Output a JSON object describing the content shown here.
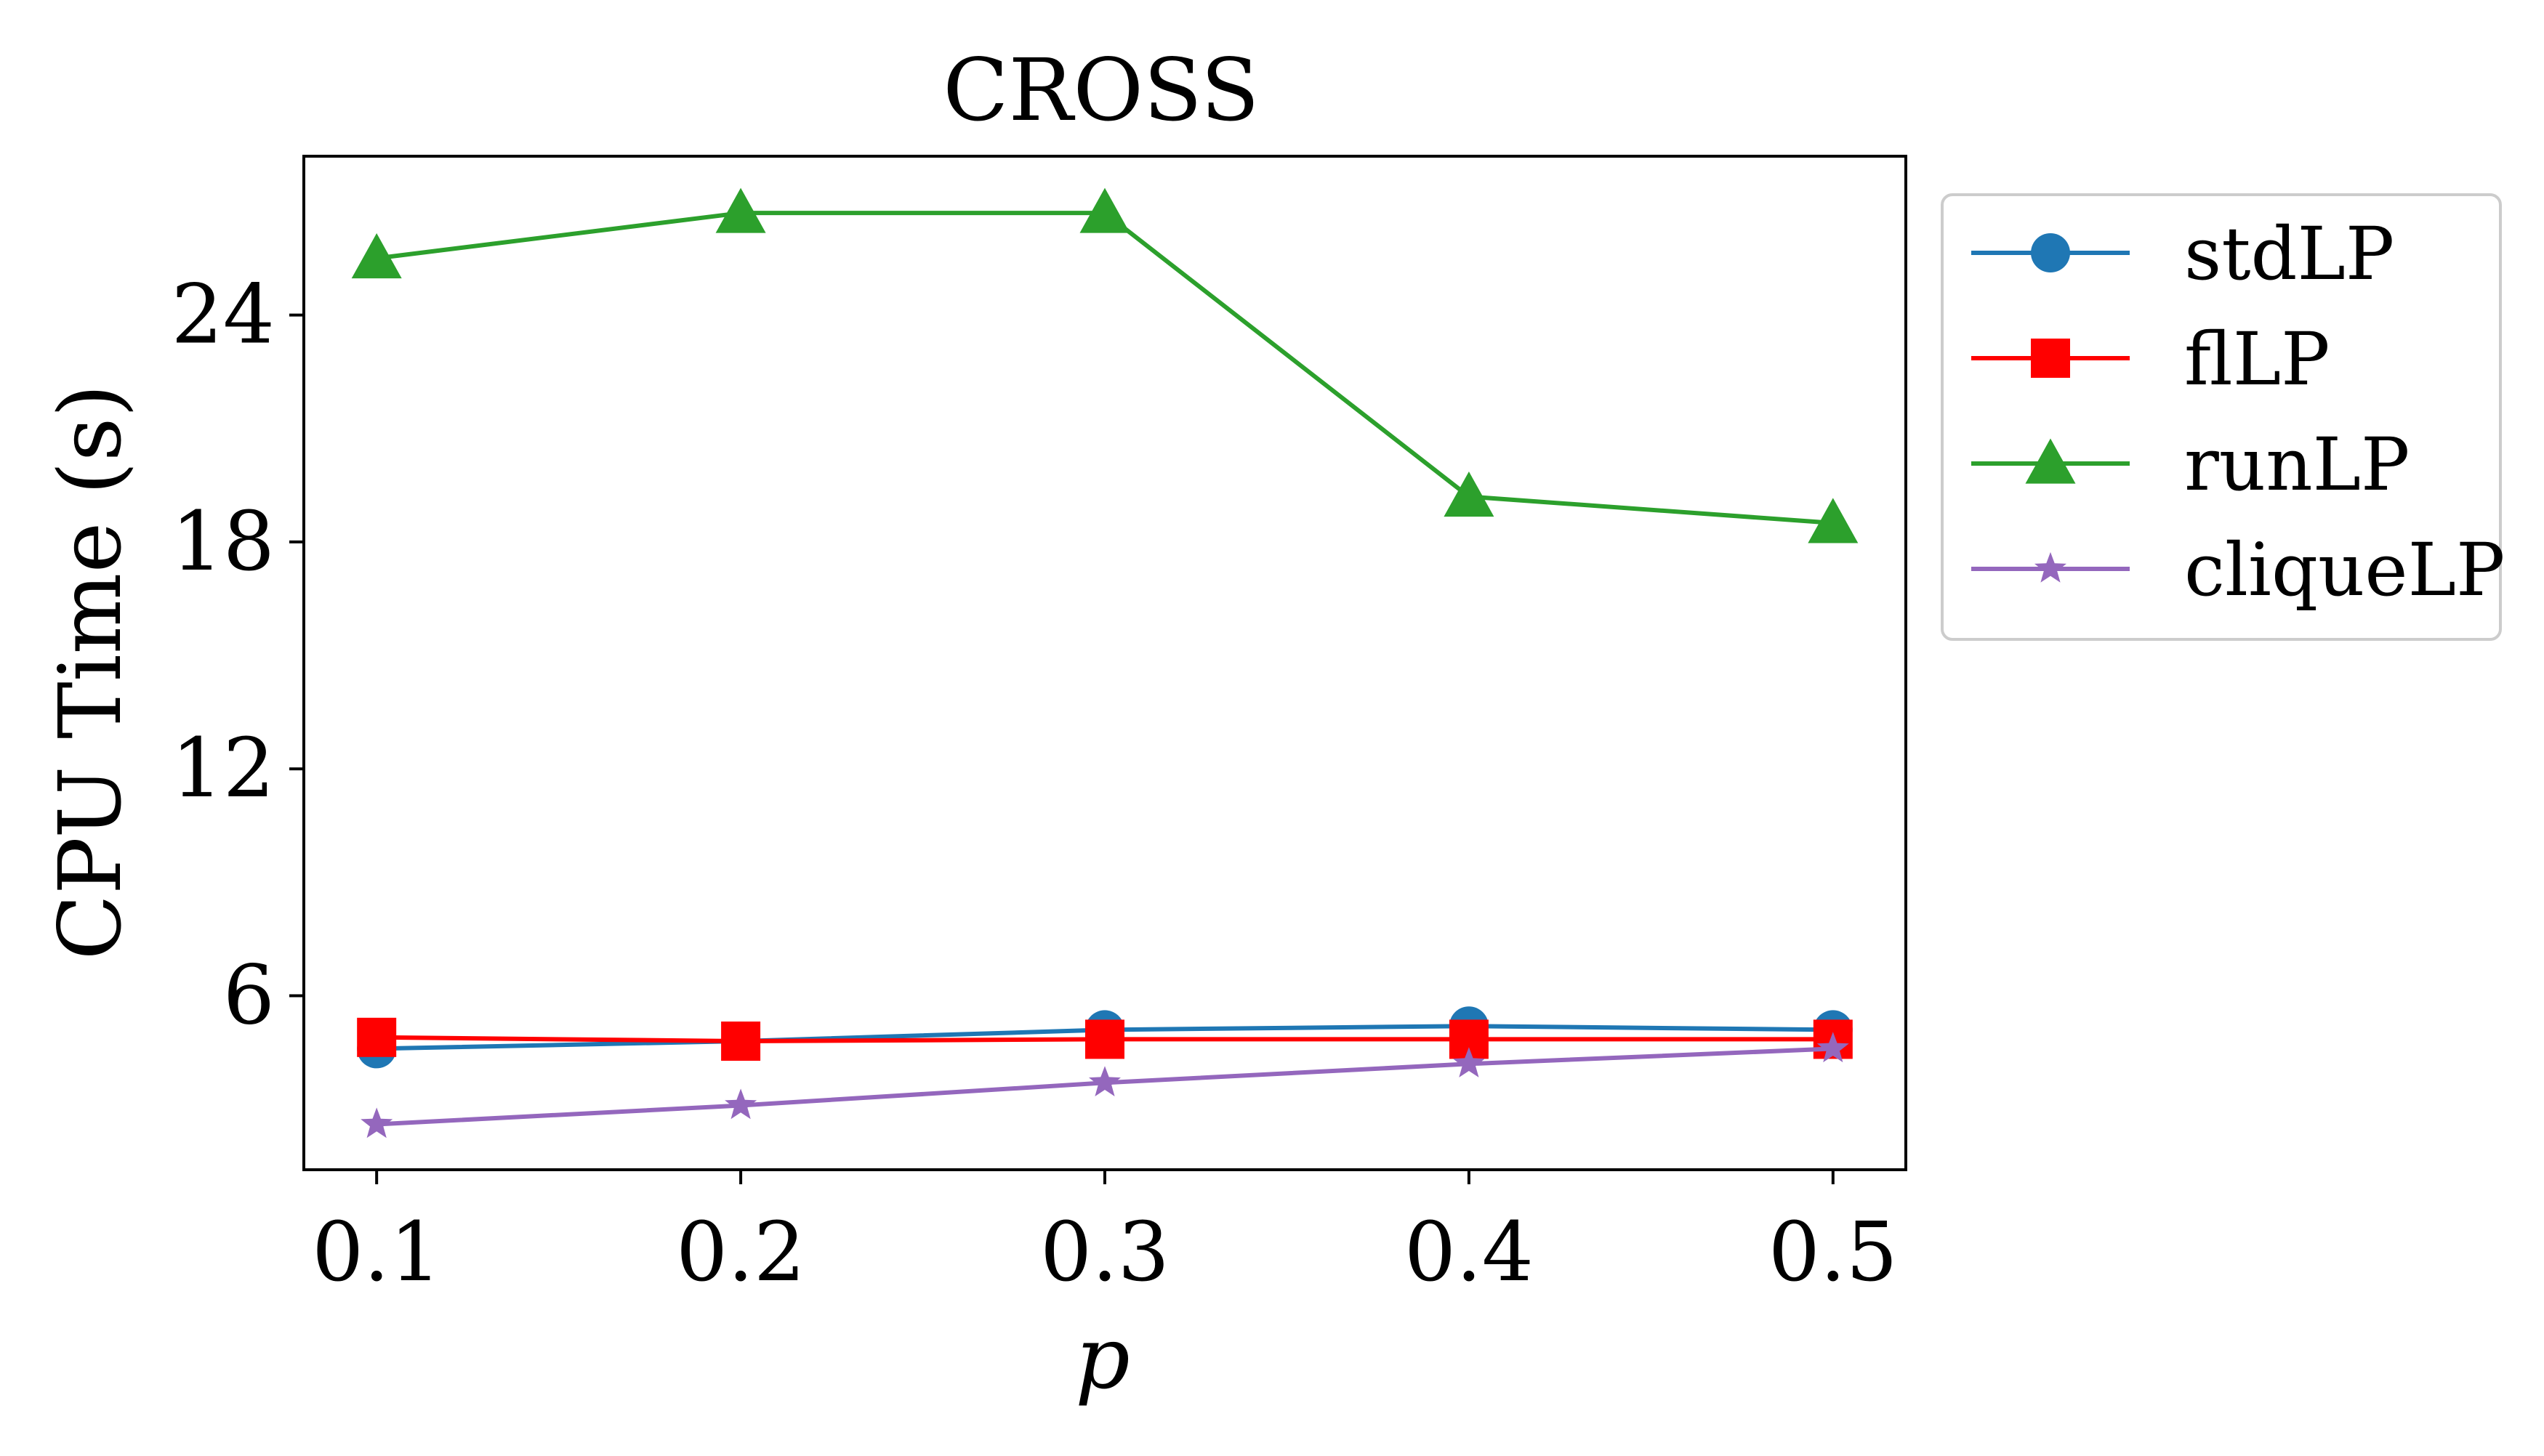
{
  "chart_data": {
    "type": "line",
    "title": "CROSS",
    "xlabel": "p",
    "ylabel": "CPU Time (s)",
    "x": [
      0.1,
      0.2,
      0.3,
      0.4,
      0.5
    ],
    "x_tick_labels": [
      "0.1",
      "0.2",
      "0.3",
      "0.4",
      "0.5"
    ],
    "xlim": [
      0.08,
      0.52
    ],
    "y_ticks": [
      6,
      12,
      18,
      24
    ],
    "y_tick_labels": [
      "6",
      "12",
      "18",
      "24"
    ],
    "ylim": [
      1.4,
      28.2
    ],
    "grid": false,
    "legend_position": "outside-right-top",
    "series": [
      {
        "name": "stdLP",
        "values": [
          4.6,
          4.8,
          5.1,
          5.2,
          5.1
        ],
        "color": "#1f77b4",
        "marker": "circle"
      },
      {
        "name": "flLP",
        "values": [
          4.9,
          4.8,
          4.85,
          4.85,
          4.85
        ],
        "color": "#ff0000",
        "marker": "square"
      },
      {
        "name": "runLP",
        "values": [
          25.5,
          26.7,
          26.7,
          19.2,
          18.5
        ],
        "color": "#2ca02c",
        "marker": "triangle"
      },
      {
        "name": "cliqueLP",
        "values": [
          2.6,
          3.1,
          3.7,
          4.2,
          4.6
        ],
        "color": "#9467bd",
        "marker": "star"
      }
    ]
  }
}
